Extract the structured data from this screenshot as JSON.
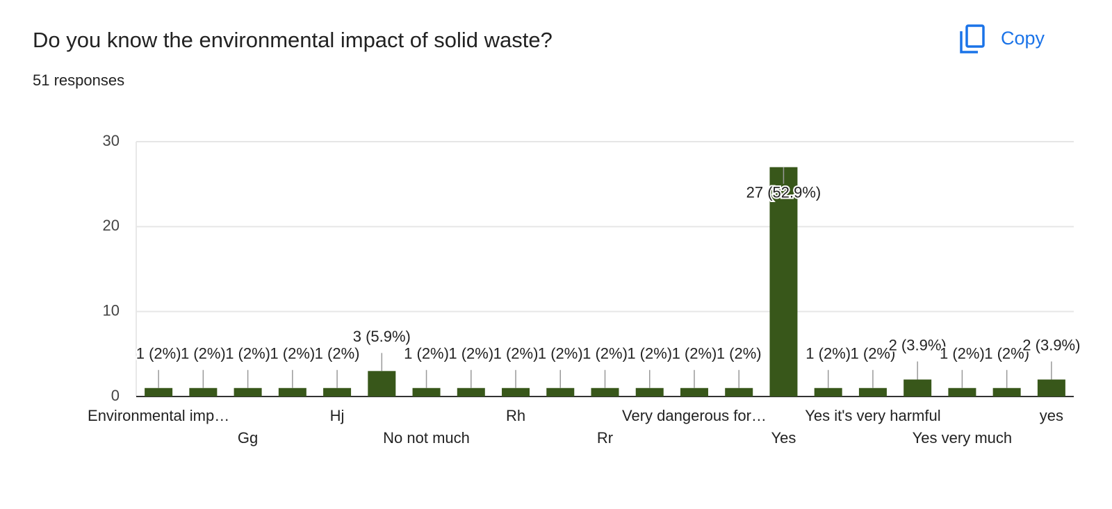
{
  "button": "Copy",
  "chart_data": {
    "type": "bar",
    "title": "Do you know the environmental impact of solid waste?",
    "subtitle": "51 responses",
    "categories": [
      "Environmental imp…",
      null,
      "Gg",
      null,
      "Hj",
      null,
      "No not much",
      null,
      "Rh",
      null,
      "Rr",
      null,
      "Very dangerous for…",
      null,
      "Yes",
      null,
      "Yes it's very harmful",
      null,
      "Yes very much",
      null,
      "yes"
    ],
    "values": [
      1,
      1,
      1,
      1,
      1,
      3,
      1,
      1,
      1,
      1,
      1,
      1,
      1,
      1,
      27,
      1,
      1,
      2,
      1,
      1,
      2
    ],
    "value_labels": [
      "1 (2%)",
      "1 (2%)",
      "1 (2%)",
      "1 (2%)",
      "1 (2%)",
      "3 (5.9%)",
      "1 (2%)",
      "1 (2%)",
      "1 (2%)",
      "1 (2%)",
      "1 (2%)",
      "1 (2%)",
      "1 (2%)",
      "1 (2%)",
      "27 (52.9%)",
      "1 (2%)",
      "1 (2%)",
      "2 (3.9%)",
      "1 (2%)",
      "1 (2%)",
      "2 (3.9%)"
    ],
    "color": "#38571a",
    "ylim": [
      0,
      30
    ],
    "yticks": [
      0,
      10,
      20,
      30
    ],
    "grid": true
  }
}
